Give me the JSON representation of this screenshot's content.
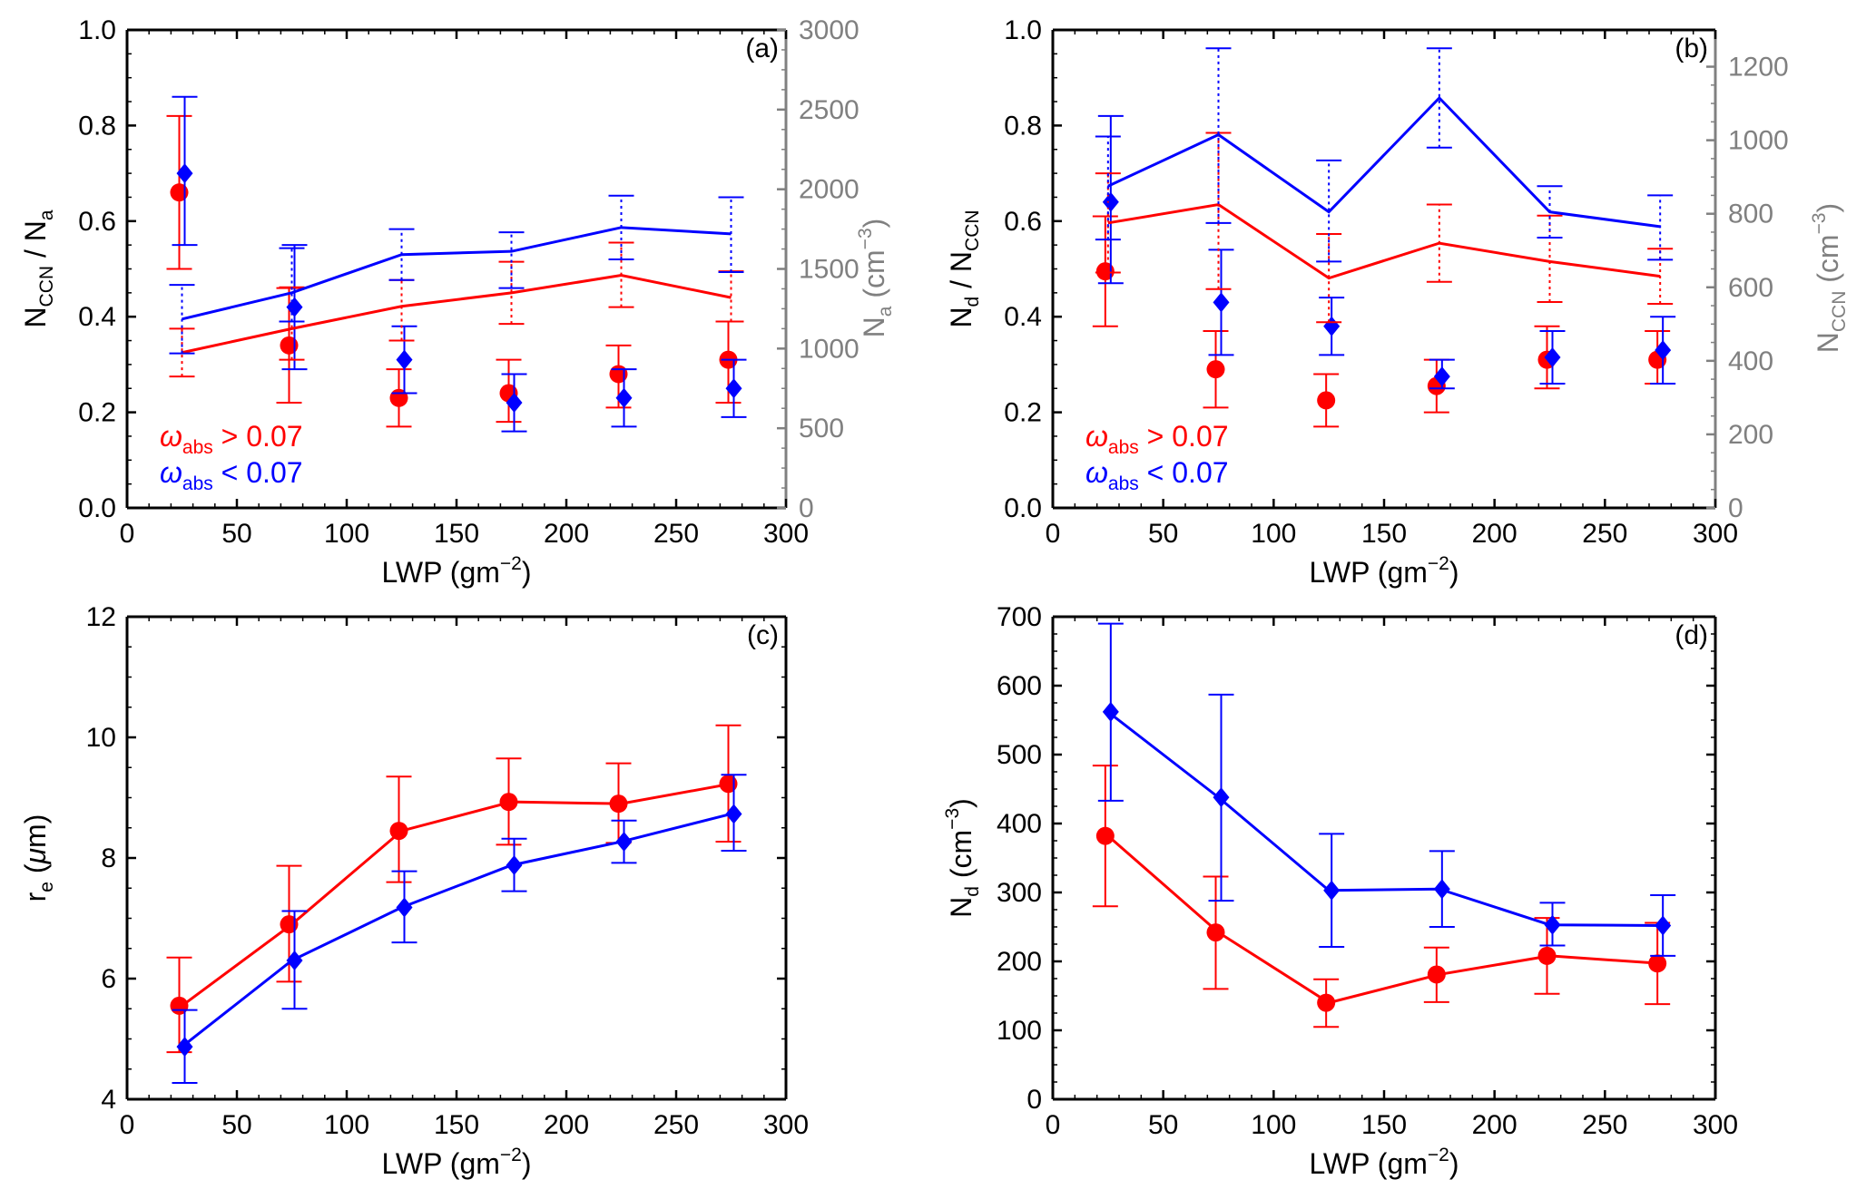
{
  "colors": {
    "high": "#ff0000",
    "low": "#0000ff",
    "right_axis": "#808080",
    "axis": "#000000"
  },
  "legend": {
    "high": {
      "label": "abs",
      "text": " > 0.07"
    },
    "low": {
      "label": "abs",
      "text": " < 0.07"
    }
  },
  "chart_data": [
    {
      "id": "a",
      "type": "scatter+line",
      "panel_label": "(a)",
      "xlabel": "LWP (gm",
      "xlabel_sup": "−2",
      "xlabel_close": ")",
      "xlim": [
        0,
        300
      ],
      "xticks": [
        0,
        50,
        100,
        150,
        200,
        250,
        300
      ],
      "ylabel": {
        "main": "N",
        "sub1": "CCN",
        "mid": " / N",
        "sub2": "a"
      },
      "ylim": [
        0,
        1.0
      ],
      "yticks": [
        "0.0",
        "0.2",
        "0.4",
        "0.6",
        "0.8",
        "1.0"
      ],
      "y2label": {
        "main": "N",
        "sub": "a",
        "unit": " (cm",
        "sup": "−3",
        "close": ")"
      },
      "y2lim": [
        0,
        3000
      ],
      "y2ticks": [
        "0",
        "500",
        "1000",
        "1500",
        "2000",
        "2500",
        "3000"
      ],
      "x": [
        25,
        75,
        125,
        175,
        225,
        275
      ],
      "series": [
        {
          "name": "ω_abs > 0.07",
          "role": "ratio",
          "marker": "circle",
          "color": "high",
          "axis": "left",
          "values": [
            0.66,
            0.34,
            0.23,
            0.24,
            0.28,
            0.31
          ],
          "err_low": [
            0.5,
            0.22,
            0.17,
            0.18,
            0.21,
            0.22
          ],
          "err_high": [
            0.82,
            0.46,
            0.29,
            0.31,
            0.34,
            0.39
          ]
        },
        {
          "name": "ω_abs < 0.07",
          "role": "ratio",
          "marker": "diamond",
          "color": "low",
          "axis": "left",
          "values": [
            0.7,
            0.42,
            0.31,
            0.22,
            0.23,
            0.25
          ],
          "err_low": [
            0.55,
            0.29,
            0.24,
            0.16,
            0.17,
            0.19
          ],
          "err_high": [
            0.86,
            0.55,
            0.38,
            0.28,
            0.29,
            0.31
          ]
        },
        {
          "name": "N_a ω_abs > 0.07",
          "role": "aerosol",
          "marker": "line",
          "color": "high",
          "axis": "right",
          "values": [
            975,
            1125,
            1265,
            1350,
            1460,
            1320
          ],
          "err_low": [
            825,
            930,
            1050,
            1155,
            1260,
            1170
          ],
          "err_high": [
            1125,
            1385,
            1430,
            1545,
            1665,
            1485
          ]
        },
        {
          "name": "N_a ω_abs < 0.07",
          "role": "aerosol",
          "marker": "line",
          "color": "low",
          "axis": "right",
          "values": [
            1185,
            1350,
            1590,
            1610,
            1760,
            1720
          ],
          "err_low": [
            970,
            1170,
            1430,
            1380,
            1560,
            1480
          ],
          "err_high": [
            1400,
            1630,
            1750,
            1730,
            1960,
            1950
          ]
        }
      ]
    },
    {
      "id": "b",
      "type": "scatter+line",
      "panel_label": "(b)",
      "xlabel": "LWP (gm",
      "xlabel_sup": "−2",
      "xlabel_close": ")",
      "xlim": [
        0,
        300
      ],
      "xticks": [
        0,
        50,
        100,
        150,
        200,
        250,
        300
      ],
      "ylabel": {
        "main": "N",
        "sub1": "d",
        "mid": " / N",
        "sub2": "CCN"
      },
      "ylim": [
        0,
        1.0
      ],
      "yticks": [
        "0.0",
        "0.2",
        "0.4",
        "0.6",
        "0.8",
        "1.0"
      ],
      "y2label": {
        "main": "N",
        "sub": "CCN",
        "unit": " (cm",
        "sup": "−3",
        "close": ")"
      },
      "y2lim": [
        0,
        1300
      ],
      "y2ticks": [
        "0",
        "200",
        "400",
        "600",
        "800",
        "1000",
        "1200"
      ],
      "x": [
        25,
        75,
        125,
        175,
        225,
        275
      ],
      "series": [
        {
          "name": "ω_abs > 0.07",
          "role": "ratio",
          "marker": "circle",
          "color": "high",
          "axis": "left",
          "values": [
            0.495,
            0.29,
            0.225,
            0.255,
            0.31,
            0.31
          ],
          "err_low": [
            0.38,
            0.21,
            0.17,
            0.2,
            0.25,
            0.26
          ],
          "err_high": [
            0.61,
            0.37,
            0.28,
            0.31,
            0.38,
            0.37
          ]
        },
        {
          "name": "ω_abs < 0.07",
          "role": "ratio",
          "marker": "diamond",
          "color": "low",
          "axis": "left",
          "values": [
            0.64,
            0.43,
            0.38,
            0.275,
            0.315,
            0.33
          ],
          "err_low": [
            0.47,
            0.32,
            0.32,
            0.25,
            0.26,
            0.26
          ],
          "err_high": [
            0.82,
            0.54,
            0.44,
            0.31,
            0.37,
            0.4
          ]
        },
        {
          "name": "N_CCN ω_abs > 0.07",
          "role": "aerosol",
          "marker": "line",
          "color": "high",
          "axis": "right",
          "values": [
            775,
            825,
            625,
            720,
            670,
            630
          ],
          "err_low": [
            640,
            595,
            505,
            615,
            560,
            555
          ],
          "err_high": [
            910,
            1020,
            745,
            825,
            795,
            705
          ]
        },
        {
          "name": "N_CCN ω_abs < 0.07",
          "role": "aerosol",
          "marker": "line",
          "color": "low",
          "axis": "right",
          "values": [
            875,
            1015,
            805,
            1115,
            805,
            765
          ],
          "err_low": [
            730,
            775,
            670,
            980,
            735,
            675
          ],
          "err_high": [
            1010,
            1250,
            945,
            1250,
            875,
            850
          ]
        }
      ]
    },
    {
      "id": "c",
      "type": "line",
      "panel_label": "(c)",
      "xlabel": "LWP (gm",
      "xlabel_sup": "−2",
      "xlabel_close": ")",
      "xlim": [
        0,
        300
      ],
      "xticks": [
        0,
        50,
        100,
        150,
        200,
        250,
        300
      ],
      "ylabel": {
        "main": "r",
        "sub": "e",
        "unit": " (",
        "greek": "μ",
        "unit2": "m)"
      },
      "ylim": [
        4,
        12
      ],
      "yticks": [
        "4",
        "6",
        "8",
        "10",
        "12"
      ],
      "x": [
        25,
        75,
        125,
        175,
        225,
        275
      ],
      "series": [
        {
          "name": "ω_abs > 0.07",
          "marker": "circle",
          "color": "high",
          "values": [
            5.55,
            6.9,
            8.45,
            8.93,
            8.9,
            9.23
          ],
          "err_low": [
            4.78,
            5.95,
            7.6,
            8.22,
            8.25,
            8.27
          ],
          "err_high": [
            6.35,
            7.87,
            9.35,
            9.65,
            9.57,
            10.2
          ]
        },
        {
          "name": "ω_abs < 0.07",
          "marker": "diamond",
          "color": "low",
          "values": [
            4.87,
            6.3,
            7.18,
            7.88,
            8.27,
            8.73
          ],
          "err_low": [
            4.27,
            5.5,
            6.6,
            7.45,
            7.92,
            8.12
          ],
          "err_high": [
            5.48,
            7.12,
            7.78,
            8.32,
            8.62,
            9.38
          ]
        }
      ]
    },
    {
      "id": "d",
      "type": "line",
      "panel_label": "(d)",
      "xlabel": "LWP (gm",
      "xlabel_sup": "−2",
      "xlabel_close": ")",
      "xlim": [
        0,
        300
      ],
      "xticks": [
        0,
        50,
        100,
        150,
        200,
        250,
        300
      ],
      "ylabel": {
        "main": "N",
        "sub": "d",
        "unit": " (cm",
        "sup": "−3",
        "close": ")"
      },
      "ylim": [
        0,
        700
      ],
      "yticks": [
        "0",
        "100",
        "200",
        "300",
        "400",
        "500",
        "600",
        "700"
      ],
      "x": [
        25,
        75,
        125,
        175,
        225,
        275
      ],
      "series": [
        {
          "name": "ω_abs > 0.07",
          "marker": "circle",
          "color": "high",
          "values": [
            382,
            242,
            140,
            181,
            208,
            197
          ],
          "err_low": [
            280,
            160,
            105,
            141,
            153,
            138
          ],
          "err_high": [
            484,
            323,
            174,
            220,
            263,
            256
          ]
        },
        {
          "name": "ω_abs < 0.07",
          "marker": "diamond",
          "color": "low",
          "values": [
            562,
            438,
            303,
            305,
            253,
            252
          ],
          "err_low": [
            433,
            288,
            221,
            250,
            223,
            208
          ],
          "err_high": [
            690,
            587,
            385,
            360,
            285,
            296
          ]
        }
      ]
    }
  ]
}
